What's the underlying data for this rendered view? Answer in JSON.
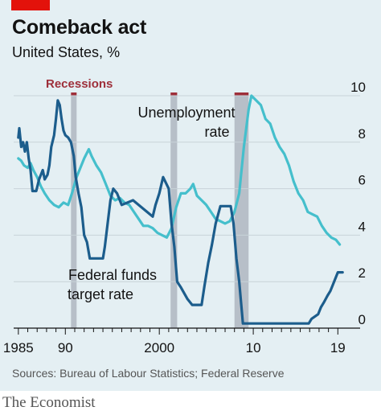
{
  "header": {
    "title": "Comeback act",
    "subtitle": "United States, %"
  },
  "footer": {
    "source": "Sources: Bureau of Labour Statistics; Federal Reserve",
    "brand": "The Economist"
  },
  "colors": {
    "unemployment": "#45bfcc",
    "fed_funds": "#1c5d8c",
    "recession_band": "#b7bfc8",
    "recession_label": "#9e2f3a",
    "brand_red": "#e3120b",
    "grid": "#c8d3d8"
  },
  "chart_data": {
    "type": "line",
    "title": "Comeback act",
    "subtitle": "United States, %",
    "xlabel": "",
    "ylabel": "",
    "xlim": [
      1984.5,
      2020
    ],
    "ylim": [
      0,
      10
    ],
    "y_axis_side": "right",
    "x_ticks": [
      {
        "value": 1985,
        "label": "1985"
      },
      {
        "value": 1990,
        "label": "90"
      },
      {
        "value": 2000,
        "label": "2000"
      },
      {
        "value": 2010,
        "label": "10"
      },
      {
        "value": 2019,
        "label": "19"
      }
    ],
    "y_ticks": [
      {
        "value": 0,
        "label": "0"
      },
      {
        "value": 2,
        "label": "2"
      },
      {
        "value": 4,
        "label": "4"
      },
      {
        "value": 6,
        "label": "6"
      },
      {
        "value": 8,
        "label": "8"
      },
      {
        "value": 10,
        "label": "10"
      }
    ],
    "grid": true,
    "recessions_label": "Recessions",
    "recessions": [
      {
        "start": 1990.6,
        "end": 1991.2
      },
      {
        "start": 2001.2,
        "end": 2001.9
      },
      {
        "start": 2008.0,
        "end": 2009.5
      }
    ],
    "series": [
      {
        "name": "Unemployment rate",
        "label_lines": [
          "Unemployment",
          "rate"
        ],
        "points": [
          [
            1985.0,
            7.3
          ],
          [
            1985.3,
            7.2
          ],
          [
            1985.6,
            7.0
          ],
          [
            1986.0,
            6.9
          ],
          [
            1986.3,
            7.1
          ],
          [
            1986.6,
            6.8
          ],
          [
            1987.0,
            6.5
          ],
          [
            1987.4,
            6.1
          ],
          [
            1987.8,
            5.8
          ],
          [
            1988.3,
            5.5
          ],
          [
            1988.8,
            5.3
          ],
          [
            1989.3,
            5.2
          ],
          [
            1989.8,
            5.4
          ],
          [
            1990.3,
            5.3
          ],
          [
            1990.7,
            5.8
          ],
          [
            1991.2,
            6.5
          ],
          [
            1991.6,
            6.9
          ],
          [
            1992.0,
            7.3
          ],
          [
            1992.5,
            7.7
          ],
          [
            1992.8,
            7.4
          ],
          [
            1993.3,
            7.0
          ],
          [
            1993.8,
            6.7
          ],
          [
            1994.3,
            6.2
          ],
          [
            1994.8,
            5.7
          ],
          [
            1995.3,
            5.5
          ],
          [
            1995.8,
            5.6
          ],
          [
            1996.3,
            5.4
          ],
          [
            1996.8,
            5.3
          ],
          [
            1997.3,
            5.0
          ],
          [
            1997.8,
            4.7
          ],
          [
            1998.3,
            4.4
          ],
          [
            1998.8,
            4.4
          ],
          [
            1999.3,
            4.3
          ],
          [
            1999.8,
            4.1
          ],
          [
            2000.3,
            4.0
          ],
          [
            2000.8,
            3.9
          ],
          [
            2001.3,
            4.3
          ],
          [
            2001.8,
            5.2
          ],
          [
            2002.3,
            5.8
          ],
          [
            2002.8,
            5.8
          ],
          [
            2003.3,
            6.0
          ],
          [
            2003.6,
            6.2
          ],
          [
            2004.0,
            5.7
          ],
          [
            2004.5,
            5.5
          ],
          [
            2005.0,
            5.3
          ],
          [
            2005.5,
            5.0
          ],
          [
            2006.0,
            4.7
          ],
          [
            2006.5,
            4.6
          ],
          [
            2007.0,
            4.5
          ],
          [
            2007.5,
            4.6
          ],
          [
            2008.0,
            5.0
          ],
          [
            2008.5,
            5.8
          ],
          [
            2009.0,
            7.8
          ],
          [
            2009.5,
            9.4
          ],
          [
            2009.8,
            10.0
          ],
          [
            2010.3,
            9.8
          ],
          [
            2010.8,
            9.6
          ],
          [
            2011.3,
            9.0
          ],
          [
            2011.8,
            8.8
          ],
          [
            2012.3,
            8.2
          ],
          [
            2012.8,
            7.8
          ],
          [
            2013.3,
            7.5
          ],
          [
            2013.8,
            7.0
          ],
          [
            2014.3,
            6.3
          ],
          [
            2014.8,
            5.8
          ],
          [
            2015.3,
            5.5
          ],
          [
            2015.8,
            5.0
          ],
          [
            2016.3,
            4.9
          ],
          [
            2016.8,
            4.8
          ],
          [
            2017.3,
            4.4
          ],
          [
            2017.8,
            4.1
          ],
          [
            2018.3,
            3.9
          ],
          [
            2018.8,
            3.8
          ],
          [
            2019.2,
            3.6
          ]
        ]
      },
      {
        "name": "Federal funds target rate",
        "label_lines": [
          "Federal funds",
          "target rate"
        ],
        "points": [
          [
            1985.0,
            8.2
          ],
          [
            1985.1,
            8.6
          ],
          [
            1985.3,
            7.8
          ],
          [
            1985.5,
            8.0
          ],
          [
            1985.7,
            7.6
          ],
          [
            1985.9,
            8.0
          ],
          [
            1986.1,
            7.3
          ],
          [
            1986.3,
            6.8
          ],
          [
            1986.5,
            5.9
          ],
          [
            1986.9,
            5.9
          ],
          [
            1987.2,
            6.4
          ],
          [
            1987.4,
            6.6
          ],
          [
            1987.6,
            6.8
          ],
          [
            1987.8,
            6.4
          ],
          [
            1988.1,
            6.6
          ],
          [
            1988.3,
            7.0
          ],
          [
            1988.5,
            7.8
          ],
          [
            1988.8,
            8.3
          ],
          [
            1989.0,
            9.0
          ],
          [
            1989.2,
            9.8
          ],
          [
            1989.4,
            9.6
          ],
          [
            1989.6,
            9.0
          ],
          [
            1989.8,
            8.5
          ],
          [
            1990.0,
            8.3
          ],
          [
            1990.3,
            8.2
          ],
          [
            1990.6,
            8.0
          ],
          [
            1990.9,
            7.4
          ],
          [
            1991.1,
            6.5
          ],
          [
            1991.4,
            5.8
          ],
          [
            1991.7,
            5.2
          ],
          [
            1992.0,
            4.0
          ],
          [
            1992.3,
            3.7
          ],
          [
            1992.6,
            3.0
          ],
          [
            1993.0,
            3.0
          ],
          [
            1994.0,
            3.0
          ],
          [
            1994.2,
            3.5
          ],
          [
            1994.5,
            4.5
          ],
          [
            1994.8,
            5.5
          ],
          [
            1995.1,
            6.0
          ],
          [
            1995.5,
            5.8
          ],
          [
            1996.0,
            5.3
          ],
          [
            1997.2,
            5.5
          ],
          [
            1998.7,
            5.0
          ],
          [
            1999.3,
            4.8
          ],
          [
            1999.6,
            5.3
          ],
          [
            2000.0,
            5.8
          ],
          [
            2000.4,
            6.5
          ],
          [
            2001.0,
            6.0
          ],
          [
            2001.3,
            4.5
          ],
          [
            2001.6,
            3.5
          ],
          [
            2001.9,
            2.0
          ],
          [
            2002.3,
            1.75
          ],
          [
            2003.0,
            1.25
          ],
          [
            2003.5,
            1.0
          ],
          [
            2004.5,
            1.0
          ],
          [
            2004.8,
            1.8
          ],
          [
            2005.2,
            2.8
          ],
          [
            2005.6,
            3.6
          ],
          [
            2006.0,
            4.5
          ],
          [
            2006.5,
            5.25
          ],
          [
            2007.6,
            5.25
          ],
          [
            2007.9,
            4.5
          ],
          [
            2008.2,
            3.0
          ],
          [
            2008.5,
            2.0
          ],
          [
            2008.9,
            0.2
          ],
          [
            2015.9,
            0.2
          ],
          [
            2016.2,
            0.4
          ],
          [
            2016.9,
            0.6
          ],
          [
            2017.2,
            0.9
          ],
          [
            2017.5,
            1.1
          ],
          [
            2017.9,
            1.4
          ],
          [
            2018.2,
            1.6
          ],
          [
            2018.5,
            1.9
          ],
          [
            2018.8,
            2.2
          ],
          [
            2019.0,
            2.4
          ],
          [
            2019.5,
            2.4
          ]
        ]
      }
    ]
  }
}
